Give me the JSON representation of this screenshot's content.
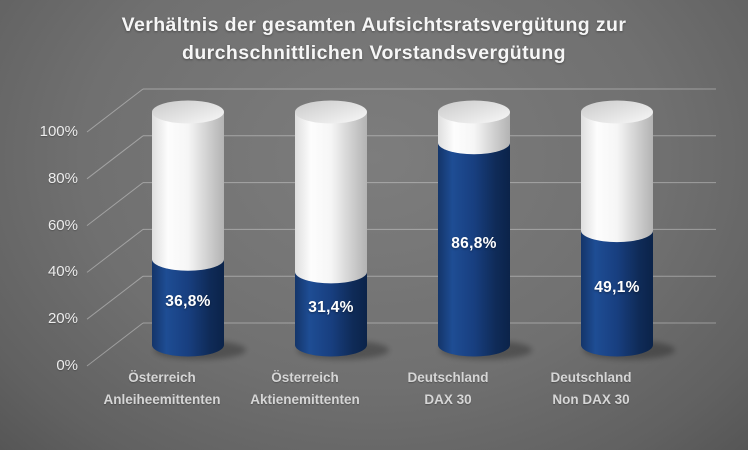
{
  "title": {
    "line1": "Verhältnis der gesamten Aufsichtsratsvergütung zur",
    "line2": "durchschnittlichen Vorstandsvergütung"
  },
  "chart_data": {
    "type": "bar",
    "style": "3d-cylinder-stacked-to-100-percent",
    "title": "Verhältnis der gesamten Aufsichtsratsvergütung zur durchschnittlichen Vorstandsvergütung",
    "categories": [
      "Österreich Anleiheemittenten",
      "Österreich Aktienemittenten",
      "Deutschland DAX 30",
      "Deutschland Non DAX 30"
    ],
    "category_lines": [
      [
        "Österreich",
        "Anleiheemittenten"
      ],
      [
        "Österreich",
        "Aktienemittenten"
      ],
      [
        "Deutschland",
        "DAX 30"
      ],
      [
        "Deutschland",
        "Non DAX 30"
      ]
    ],
    "values": [
      36.8,
      31.4,
      86.8,
      49.1
    ],
    "value_labels": [
      "36,8%",
      "31,4%",
      "86,8%",
      "49,1%"
    ],
    "remainder_to_100": [
      63.2,
      68.6,
      13.2,
      50.9
    ],
    "ylim": [
      0,
      100
    ],
    "yticks": [
      "0%",
      "20%",
      "40%",
      "60%",
      "80%",
      "100%"
    ],
    "grid": true,
    "legend": false,
    "colors": {
      "bar_filled": "#173F7D",
      "bar_remainder": "#F5F5F5",
      "background": "#6E6E6E",
      "gridline": "#A6A6A6",
      "title_text": "#F6F6F6",
      "axis_text": "#ECECEC",
      "category_text": "#D6D6D6",
      "value_label_text": "#FFFFFF"
    }
  }
}
